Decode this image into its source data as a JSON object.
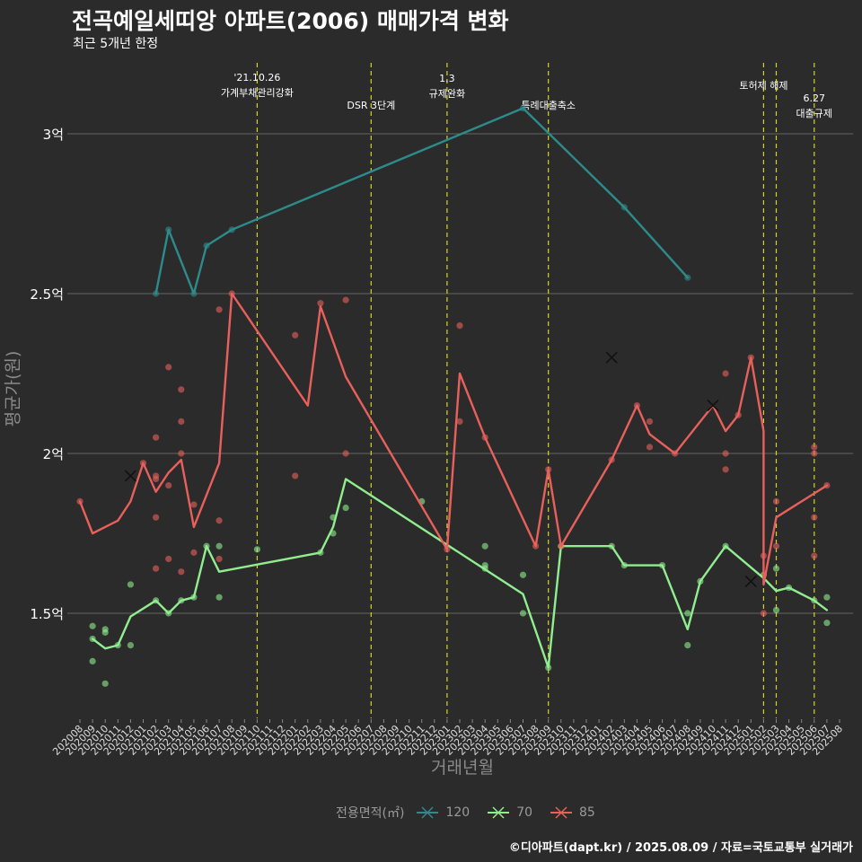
{
  "chart_data": {
    "type": "line",
    "title": "전곡예일세띠앙 아파트(2006) 매매가격 변화",
    "subtitle": "최근 5개년 한정",
    "xlabel": "거래년월",
    "ylabel": "평균가(원)",
    "ylim": [
      1.2,
      3.2
    ],
    "yticks": [
      {
        "v": 1.5,
        "label": "1.5억"
      },
      {
        "v": 2.0,
        "label": "2억"
      },
      {
        "v": 2.5,
        "label": "2.5억"
      },
      {
        "v": 3.0,
        "label": "3억"
      }
    ],
    "categories": [
      "202008",
      "202009",
      "202010",
      "202011",
      "202012",
      "202101",
      "202102",
      "202103",
      "202104",
      "202105",
      "202106",
      "202107",
      "202108",
      "202109",
      "202110",
      "202111",
      "202112",
      "202201",
      "202202",
      "202203",
      "202204",
      "202205",
      "202206",
      "202207",
      "202208",
      "202209",
      "202210",
      "202211",
      "202212",
      "202301",
      "202302",
      "202303",
      "202304",
      "202305",
      "202306",
      "202307",
      "202308",
      "202309",
      "202310",
      "202311",
      "202312",
      "202401",
      "202402",
      "202403",
      "202404",
      "202405",
      "202406",
      "202407",
      "202408",
      "202409",
      "202410",
      "202411",
      "202412",
      "202501",
      "202502",
      "202503",
      "202504",
      "202505",
      "202506",
      "202507",
      "202508"
    ],
    "legend_title": "전용면적(㎡)",
    "grid": true,
    "series": [
      {
        "name": "120",
        "color": "#2e8b8b",
        "line": [
          [
            "202102",
            2.5
          ],
          [
            "202103",
            2.7
          ],
          [
            "202105",
            2.5
          ],
          [
            "202106",
            2.65
          ],
          [
            "202108",
            2.7
          ],
          [
            "202307",
            3.08
          ],
          [
            "202403",
            2.77
          ],
          [
            "202408",
            2.55
          ]
        ],
        "points": [
          [
            "202102",
            2.5
          ],
          [
            "202103",
            2.7
          ],
          [
            "202105",
            2.5
          ],
          [
            "202106",
            2.65
          ],
          [
            "202108",
            2.7
          ],
          [
            "202307",
            3.08
          ],
          [
            "202403",
            2.77
          ],
          [
            "202408",
            2.55
          ]
        ],
        "crosses": []
      },
      {
        "name": "70",
        "color": "#90ee90",
        "line": [
          [
            "202009",
            1.42
          ],
          [
            "202010",
            1.39
          ],
          [
            "202011",
            1.4
          ],
          [
            "202012",
            1.49
          ],
          [
            "202102",
            1.54
          ],
          [
            "202103",
            1.5
          ],
          [
            "202104",
            1.54
          ],
          [
            "202105",
            1.55
          ],
          [
            "202106",
            1.71
          ],
          [
            "202107",
            1.63
          ],
          [
            "202203",
            1.69
          ],
          [
            "202204",
            1.77
          ],
          [
            "202205",
            1.92
          ],
          [
            "202307",
            1.56
          ],
          [
            "202309",
            1.33
          ],
          [
            "202310",
            1.71
          ],
          [
            "202402",
            1.71
          ],
          [
            "202403",
            1.65
          ],
          [
            "202406",
            1.65
          ],
          [
            "202408",
            1.45
          ],
          [
            "202409",
            1.6
          ],
          [
            "202411",
            1.71
          ],
          [
            "202502",
            1.61
          ],
          [
            "202503",
            1.57
          ],
          [
            "202504",
            1.58
          ],
          [
            "202506",
            1.54
          ],
          [
            "202507",
            1.51
          ]
        ],
        "points": [
          [
            "202009",
            1.46
          ],
          [
            "202009",
            1.42
          ],
          [
            "202009",
            1.35
          ],
          [
            "202010",
            1.45
          ],
          [
            "202010",
            1.44
          ],
          [
            "202010",
            1.28
          ],
          [
            "202011",
            1.4
          ],
          [
            "202012",
            1.59
          ],
          [
            "202012",
            1.4
          ],
          [
            "202102",
            1.54
          ],
          [
            "202103",
            1.5
          ],
          [
            "202104",
            1.54
          ],
          [
            "202105",
            1.55
          ],
          [
            "202106",
            1.71
          ],
          [
            "202107",
            1.71
          ],
          [
            "202107",
            1.55
          ],
          [
            "202110",
            1.7
          ],
          [
            "202203",
            1.69
          ],
          [
            "202204",
            1.8
          ],
          [
            "202204",
            1.75
          ],
          [
            "202205",
            1.83
          ],
          [
            "202211",
            1.85
          ],
          [
            "202304",
            1.71
          ],
          [
            "202304",
            1.65
          ],
          [
            "202304",
            1.64
          ],
          [
            "202307",
            1.62
          ],
          [
            "202307",
            1.5
          ],
          [
            "202309",
            1.33
          ],
          [
            "202310",
            1.71
          ],
          [
            "202402",
            1.71
          ],
          [
            "202403",
            1.65
          ],
          [
            "202406",
            1.65
          ],
          [
            "202408",
            1.5
          ],
          [
            "202408",
            1.4
          ],
          [
            "202409",
            1.6
          ],
          [
            "202411",
            1.71
          ],
          [
            "202502",
            1.62
          ],
          [
            "202503",
            1.64
          ],
          [
            "202503",
            1.51
          ],
          [
            "202504",
            1.58
          ],
          [
            "202506",
            1.54
          ],
          [
            "202507",
            1.55
          ],
          [
            "202507",
            1.47
          ]
        ],
        "crosses": [
          [
            "202501",
            1.6
          ]
        ]
      },
      {
        "name": "85",
        "color": "#e8605c",
        "line": [
          [
            "202008",
            1.85
          ],
          [
            "202009",
            1.75
          ],
          [
            "202011",
            1.79
          ],
          [
            "202012",
            1.85
          ],
          [
            "202101",
            1.97
          ],
          [
            "202102",
            1.88
          ],
          [
            "202103",
            1.94
          ],
          [
            "202104",
            1.98
          ],
          [
            "202105",
            1.77
          ],
          [
            "202107",
            1.97
          ],
          [
            "202108",
            2.5
          ],
          [
            "202202",
            2.15
          ],
          [
            "202203",
            2.46
          ],
          [
            "202205",
            2.24
          ],
          [
            "202301",
            1.7
          ],
          [
            "202302",
            2.25
          ],
          [
            "202304",
            2.05
          ],
          [
            "202308",
            1.71
          ],
          [
            "202309",
            1.95
          ],
          [
            "202310",
            1.71
          ],
          [
            "202402",
            1.98
          ],
          [
            "202404",
            2.15
          ],
          [
            "202405",
            2.06
          ],
          [
            "202407",
            2.0
          ],
          [
            "202410",
            2.15
          ],
          [
            "202411",
            2.07
          ],
          [
            "202412",
            2.12
          ],
          [
            "202501",
            2.3
          ],
          [
            "202502",
            2.07
          ],
          [
            "202502",
            1.59
          ],
          [
            "202503",
            1.8
          ],
          [
            "202507",
            1.9
          ]
        ],
        "points": [
          [
            "202008",
            1.85
          ],
          [
            "202101",
            1.97
          ],
          [
            "202102",
            1.93
          ],
          [
            "202102",
            1.92
          ],
          [
            "202102",
            2.05
          ],
          [
            "202102",
            1.8
          ],
          [
            "202102",
            1.64
          ],
          [
            "202103",
            2.27
          ],
          [
            "202103",
            1.9
          ],
          [
            "202103",
            1.67
          ],
          [
            "202104",
            2.2
          ],
          [
            "202104",
            2.1
          ],
          [
            "202104",
            2.0
          ],
          [
            "202104",
            1.63
          ],
          [
            "202105",
            1.84
          ],
          [
            "202105",
            1.69
          ],
          [
            "202107",
            2.45
          ],
          [
            "202107",
            1.79
          ],
          [
            "202107",
            1.67
          ],
          [
            "202108",
            2.5
          ],
          [
            "202201",
            2.37
          ],
          [
            "202201",
            1.93
          ],
          [
            "202203",
            2.47
          ],
          [
            "202205",
            2.48
          ],
          [
            "202205",
            2.0
          ],
          [
            "202301",
            1.7
          ],
          [
            "202302",
            2.4
          ],
          [
            "202302",
            2.1
          ],
          [
            "202304",
            2.05
          ],
          [
            "202308",
            1.71
          ],
          [
            "202309",
            1.95
          ],
          [
            "202310",
            1.71
          ],
          [
            "202402",
            1.98
          ],
          [
            "202404",
            2.15
          ],
          [
            "202405",
            2.1
          ],
          [
            "202405",
            2.02
          ],
          [
            "202407",
            2.0
          ],
          [
            "202411",
            2.25
          ],
          [
            "202411",
            2.0
          ],
          [
            "202411",
            1.95
          ],
          [
            "202412",
            2.12
          ],
          [
            "202501",
            2.3
          ],
          [
            "202502",
            1.68
          ],
          [
            "202502",
            1.5
          ],
          [
            "202503",
            1.85
          ],
          [
            "202503",
            1.71
          ],
          [
            "202506",
            2.02
          ],
          [
            "202506",
            2.0
          ],
          [
            "202506",
            1.8
          ],
          [
            "202506",
            1.68
          ],
          [
            "202507",
            1.9
          ]
        ],
        "crosses": [
          [
            "202012",
            1.93
          ],
          [
            "202402",
            2.3
          ],
          [
            "202410",
            2.15
          ]
        ]
      }
    ],
    "events": [
      {
        "x": 14.0,
        "lines": [
          "'21.10.26",
          "가계부채관리강화"
        ],
        "y": [
          90,
          107
        ]
      },
      {
        "x": 23.0,
        "lines": [
          "DSR 3단계"
        ],
        "y": [
          121
        ]
      },
      {
        "x": 29.0,
        "lines": [
          "1.3",
          "규제완화"
        ],
        "y": [
          91,
          108
        ]
      },
      {
        "x": 37.0,
        "lines": [
          "특례대출축소"
        ],
        "y": [
          121
        ]
      },
      {
        "x": 54.0,
        "lines": [
          "토허제 해제"
        ],
        "y": [
          99
        ]
      },
      {
        "x": 55.0,
        "lines": [],
        "y": []
      },
      {
        "x": 58.0,
        "lines": [
          "6.27",
          "대출규제"
        ],
        "y": [
          113,
          130
        ]
      }
    ]
  },
  "caption": "©디아파트(dapt.kr) / 2025.08.09 / 자료=국토교통부 실거래가"
}
